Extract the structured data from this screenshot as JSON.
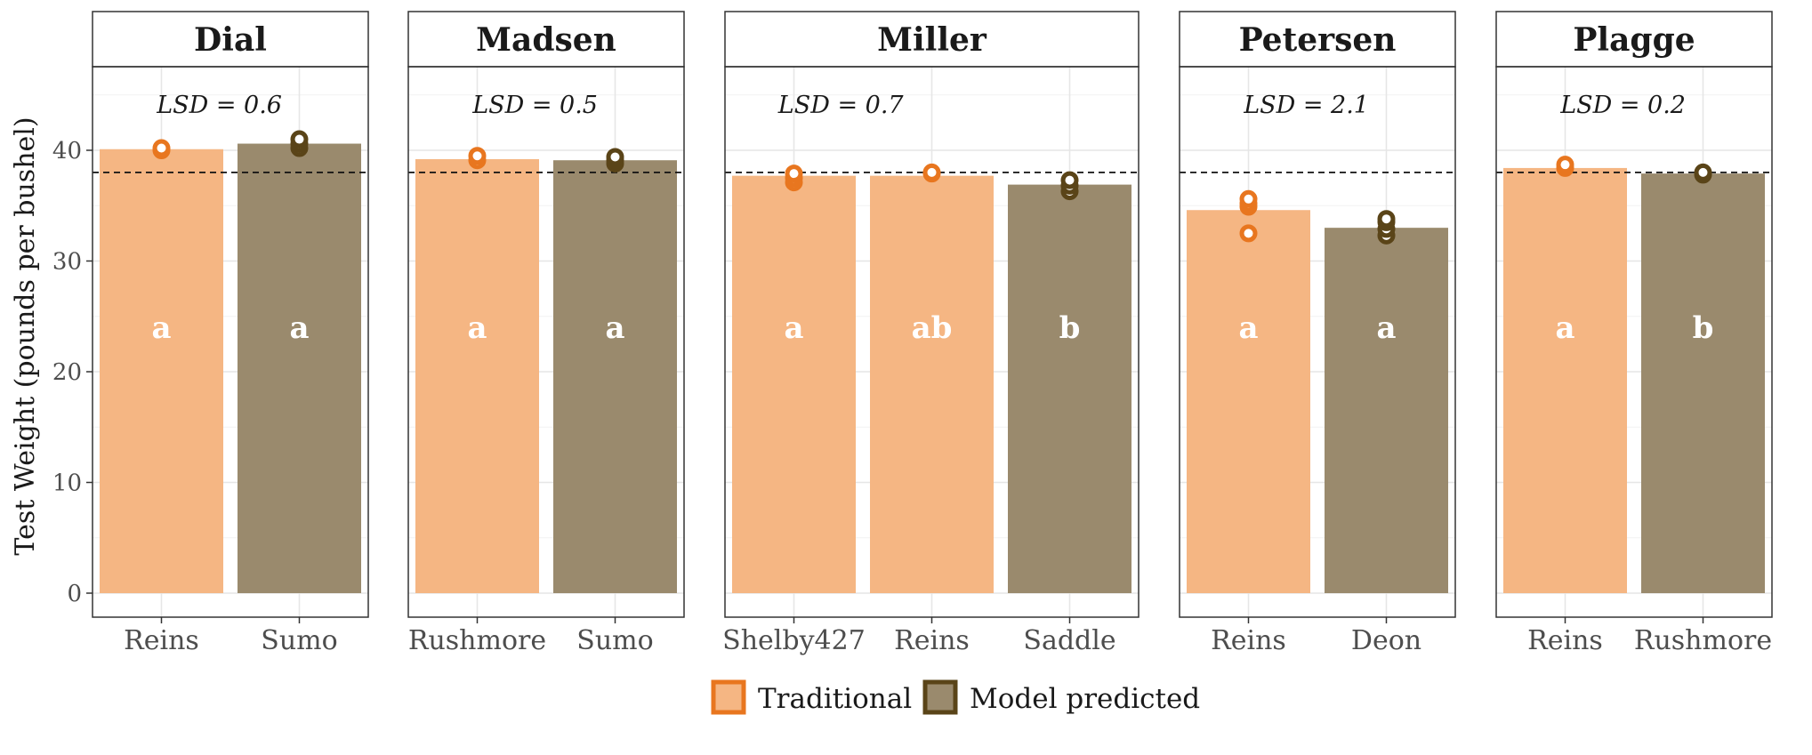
{
  "chart_data": {
    "type": "bar",
    "ylabel": "Test Weight (pounds per bushel)",
    "ylim": [
      0,
      45
    ],
    "yticks": [
      0,
      10,
      20,
      30,
      40
    ],
    "reference_line": 38,
    "grid": true,
    "legend_position": "bottom",
    "legend": [
      {
        "name": "Traditional",
        "fill": "#f5b683",
        "stroke": "#e8761f"
      },
      {
        "name": "Model predicted",
        "fill": "#9a8a6d",
        "stroke": "#5a4418"
      }
    ],
    "colors": {
      "Traditional": {
        "bar": "#f5b683",
        "point": "#e8761f"
      },
      "Model predicted": {
        "bar": "#9a8a6d",
        "point": "#5a4418"
      }
    },
    "panels": [
      {
        "name": "Dial",
        "lsd": "LSD = 0.6",
        "bars": [
          {
            "category": "Reins",
            "type": "Traditional",
            "value": 40.1,
            "letter": "a",
            "points": [
              40.0,
              40.2
            ]
          },
          {
            "category": "Sumo",
            "type": "Model predicted",
            "value": 40.6,
            "letter": "a",
            "points": [
              40.2,
              40.6,
              41.0
            ]
          }
        ]
      },
      {
        "name": "Madsen",
        "lsd": "LSD = 0.5",
        "bars": [
          {
            "category": "Rushmore",
            "type": "Traditional",
            "value": 39.2,
            "letter": "a",
            "points": [
              39.1,
              39.5
            ]
          },
          {
            "category": "Sumo",
            "type": "Model predicted",
            "value": 39.1,
            "letter": "a",
            "points": [
              38.8,
              39.1,
              39.4
            ]
          }
        ]
      },
      {
        "name": "Miller",
        "lsd": "LSD = 0.7",
        "bars": [
          {
            "category": "Shelby427",
            "type": "Traditional",
            "value": 37.7,
            "letter": "a",
            "points": [
              37.1,
              37.5,
              37.9
            ]
          },
          {
            "category": "Reins",
            "type": "Traditional",
            "value": 37.7,
            "letter": "ab",
            "points": [
              37.9,
              38.0
            ]
          },
          {
            "category": "Saddle",
            "type": "Model predicted",
            "value": 36.9,
            "letter": "b",
            "points": [
              36.3,
              36.8,
              37.3
            ]
          }
        ]
      },
      {
        "name": "Petersen",
        "lsd": "LSD = 2.1",
        "bars": [
          {
            "category": "Reins",
            "type": "Traditional",
            "value": 34.6,
            "letter": "a",
            "points": [
              32.5,
              34.9,
              35.2,
              35.6
            ]
          },
          {
            "category": "Deon",
            "type": "Model predicted",
            "value": 33.0,
            "letter": "a",
            "points": [
              32.3,
              32.9,
              33.5,
              33.8
            ]
          }
        ]
      },
      {
        "name": "Plagge",
        "lsd": "LSD = 0.2",
        "bars": [
          {
            "category": "Reins",
            "type": "Traditional",
            "value": 38.4,
            "letter": "a",
            "points": [
              38.4,
              38.7
            ]
          },
          {
            "category": "Rushmore",
            "type": "Model predicted",
            "value": 37.9,
            "letter": "b",
            "points": [
              37.8,
              38.0
            ]
          }
        ]
      }
    ]
  }
}
